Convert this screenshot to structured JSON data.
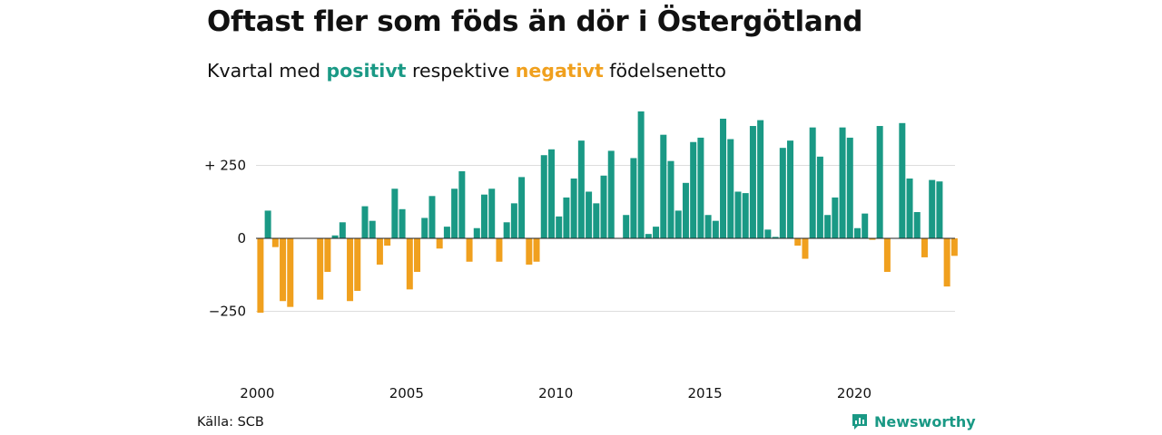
{
  "title": "Oftast fler som föds än dör i Östergötland",
  "subtitle": {
    "before": "Kvartal med ",
    "positive": "positivt",
    "middle": " respektive ",
    "negative": "negativt",
    "after": " födelsenetto"
  },
  "source": "Källa: SCB",
  "brand": {
    "name": "Newsworthy",
    "icon": "newsworthy-logo-icon"
  },
  "colors": {
    "positive": "#1a9985",
    "negative": "#f0a01e",
    "grid": "#dddddd",
    "zero": "#222222"
  },
  "chart_data": {
    "type": "bar",
    "title": "Oftast fler som föds än dör i Östergötland",
    "subtitle": "Kvartal med positivt respektive negativt födelsenetto",
    "xlabel": "",
    "ylabel": "",
    "start_year": 2000,
    "quarters_per_year": 4,
    "x_ticks": [
      {
        "value": 2000,
        "label": "2000"
      },
      {
        "value": 2005,
        "label": "2005"
      },
      {
        "value": 2010,
        "label": "2010"
      },
      {
        "value": 2015,
        "label": "2015"
      },
      {
        "value": 2020,
        "label": "2020"
      }
    ],
    "y_ticks": [
      {
        "value": 250,
        "label": "+ 250"
      },
      {
        "value": 0,
        "label": "0"
      },
      {
        "value": -250,
        "label": "−250"
      }
    ],
    "ylim": [
      -330,
      450
    ],
    "grid": true,
    "values": [
      -255,
      95,
      -30,
      -215,
      -235,
      0,
      0,
      0,
      -210,
      -115,
      10,
      55,
      -215,
      -180,
      110,
      60,
      -90,
      -25,
      170,
      100,
      -175,
      -115,
      70,
      145,
      -35,
      40,
      170,
      230,
      -80,
      35,
      150,
      170,
      -80,
      55,
      120,
      210,
      -90,
      -80,
      285,
      305,
      75,
      140,
      205,
      335,
      160,
      120,
      215,
      300,
      0,
      80,
      275,
      435,
      15,
      40,
      355,
      265,
      95,
      190,
      330,
      345,
      80,
      60,
      410,
      340,
      160,
      155,
      385,
      405,
      30,
      5,
      310,
      335,
      -25,
      -70,
      380,
      280,
      80,
      140,
      380,
      345,
      35,
      85,
      -5,
      385,
      -115,
      0,
      395,
      205,
      90,
      -65,
      200,
      195,
      -165,
      -60
    ]
  }
}
